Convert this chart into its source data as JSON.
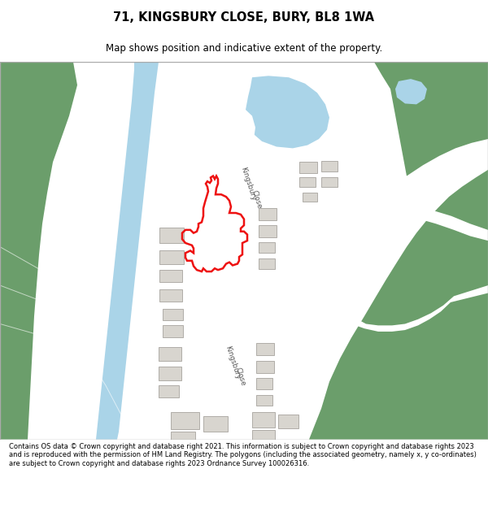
{
  "title": "71, KINGSBURY CLOSE, BURY, BL8 1WA",
  "subtitle": "Map shows position and indicative extent of the property.",
  "footer": "Contains OS data © Crown copyright and database right 2021. This information is subject to Crown copyright and database rights 2023 and is reproduced with the permission of HM Land Registry. The polygons (including the associated geometry, namely x, y co-ordinates) are subject to Crown copyright and database rights 2023 Ordnance Survey 100026316.",
  "bg_color": "#ffffff",
  "map_bg": "#f2efe9",
  "green_color": "#6b9e6b",
  "blue_color": "#aad4e8",
  "building_color": "#d8d5cf",
  "building_edge": "#b0ada8",
  "red_outline_color": "#ee1111",
  "road_color": "#ffffff",
  "text_color": "#555555"
}
